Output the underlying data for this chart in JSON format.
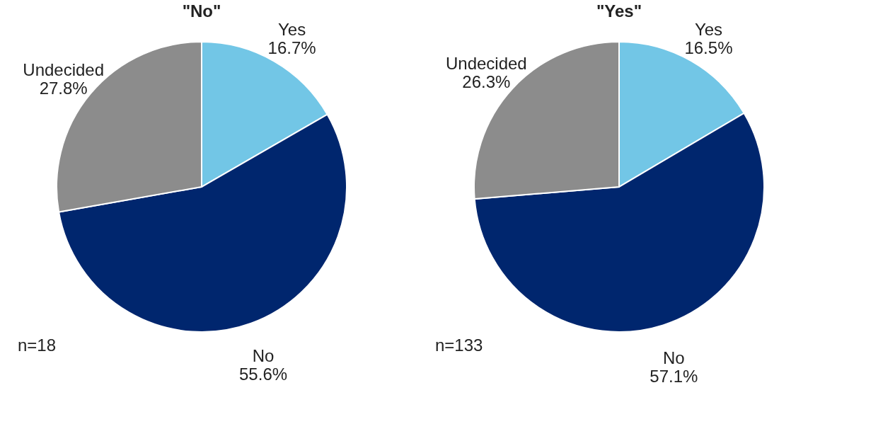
{
  "chart_data": [
    {
      "type": "pie",
      "title": "\"No\"",
      "categories": [
        "Yes",
        "No",
        "Undecided"
      ],
      "values": [
        16.7,
        55.6,
        27.8
      ],
      "colors": [
        "#72c6e6",
        "#00266e",
        "#8c8c8c"
      ],
      "value_labels": [
        "16.7%",
        "55.6%",
        "27.8%"
      ],
      "annotations": [
        "n=18"
      ]
    },
    {
      "type": "pie",
      "title": "\"Yes\"",
      "categories": [
        "Yes",
        "No",
        "Undecided"
      ],
      "values": [
        16.5,
        57.1,
        26.3
      ],
      "colors": [
        "#72c6e6",
        "#00266e",
        "#8c8c8c"
      ],
      "value_labels": [
        "16.5%",
        "57.1%",
        "26.3%"
      ],
      "annotations": [
        "n=133"
      ]
    }
  ]
}
